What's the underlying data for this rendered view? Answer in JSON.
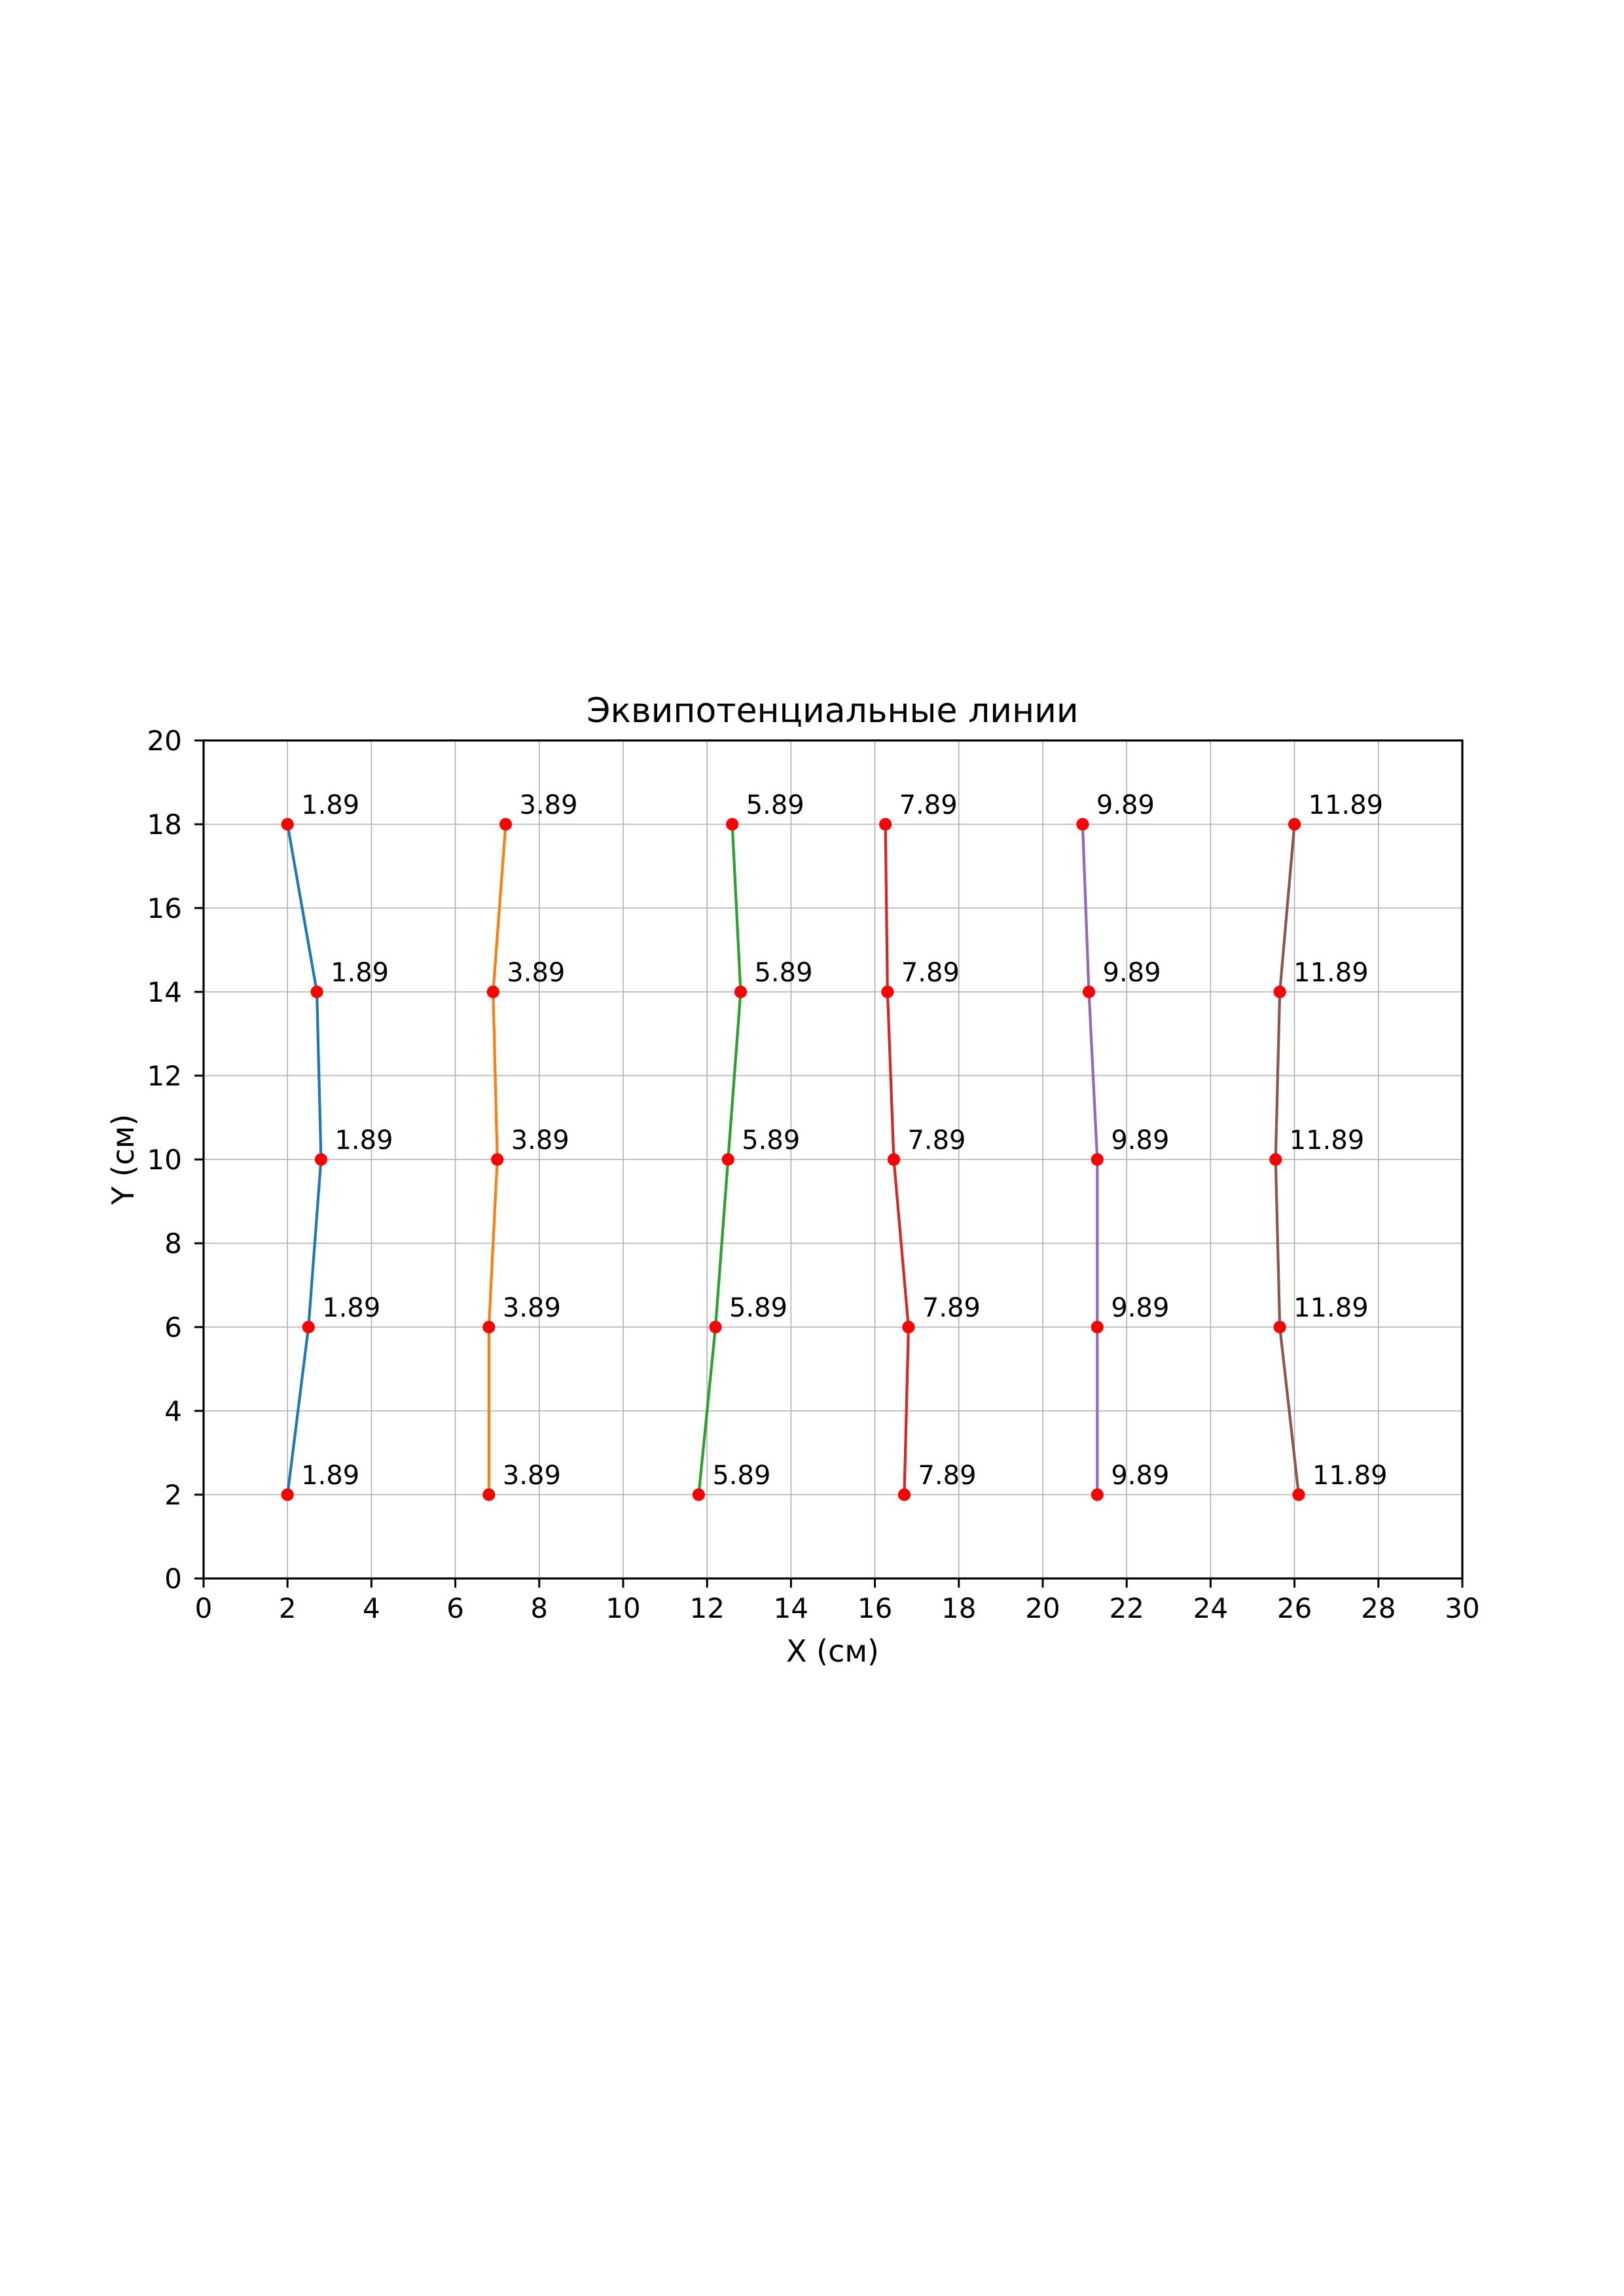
{
  "figure": {
    "background_color": "#ffffff",
    "text_color": "#000000"
  },
  "chart_data": {
    "type": "line",
    "title": "Эквипотенциальные линии",
    "xlabel": "X (см)",
    "ylabel": "Y (см)",
    "xlim": [
      0,
      30
    ],
    "ylim": [
      0,
      20
    ],
    "xticks": [
      0,
      2,
      4,
      6,
      8,
      10,
      12,
      14,
      16,
      18,
      20,
      22,
      24,
      26,
      28,
      30
    ],
    "yticks": [
      0,
      2,
      4,
      6,
      8,
      10,
      12,
      14,
      16,
      18,
      20
    ],
    "grid": true,
    "grid_color": "#b0b0b0",
    "spine_color": "#000000",
    "marker_color": "#ff0000",
    "annotation_color": "#000000",
    "legend": "none",
    "series": [
      {
        "name": "equipotential-1.89",
        "label": "1.89",
        "color": "#1f77b4",
        "points": [
          [
            2.0,
            18
          ],
          [
            2.7,
            14
          ],
          [
            2.8,
            10
          ],
          [
            2.5,
            6
          ],
          [
            2.0,
            2
          ]
        ]
      },
      {
        "name": "equipotential-3.89",
        "label": "3.89",
        "color": "#ff7f0e",
        "points": [
          [
            7.2,
            18
          ],
          [
            6.9,
            14
          ],
          [
            7.0,
            10
          ],
          [
            6.8,
            6
          ],
          [
            6.8,
            2
          ]
        ]
      },
      {
        "name": "equipotential-5.89",
        "label": "5.89",
        "color": "#2ca02c",
        "points": [
          [
            12.6,
            18
          ],
          [
            12.8,
            14
          ],
          [
            12.5,
            10
          ],
          [
            12.2,
            6
          ],
          [
            11.8,
            2
          ]
        ]
      },
      {
        "name": "equipotential-7.89",
        "label": "7.89",
        "color": "#d62728",
        "points": [
          [
            16.25,
            18
          ],
          [
            16.3,
            14
          ],
          [
            16.45,
            10
          ],
          [
            16.8,
            6
          ],
          [
            16.7,
            2
          ]
        ]
      },
      {
        "name": "equipotential-9.89",
        "label": "9.89",
        "color": "#9467bd",
        "points": [
          [
            20.95,
            18
          ],
          [
            21.1,
            14
          ],
          [
            21.3,
            10
          ],
          [
            21.3,
            6
          ],
          [
            21.3,
            2
          ]
        ]
      },
      {
        "name": "equipotential-11.89",
        "label": "11.89",
        "color": "#8c564b",
        "points": [
          [
            26.0,
            18
          ],
          [
            25.65,
            14
          ],
          [
            25.55,
            10
          ],
          [
            25.65,
            6
          ],
          [
            26.1,
            2
          ]
        ]
      }
    ]
  }
}
